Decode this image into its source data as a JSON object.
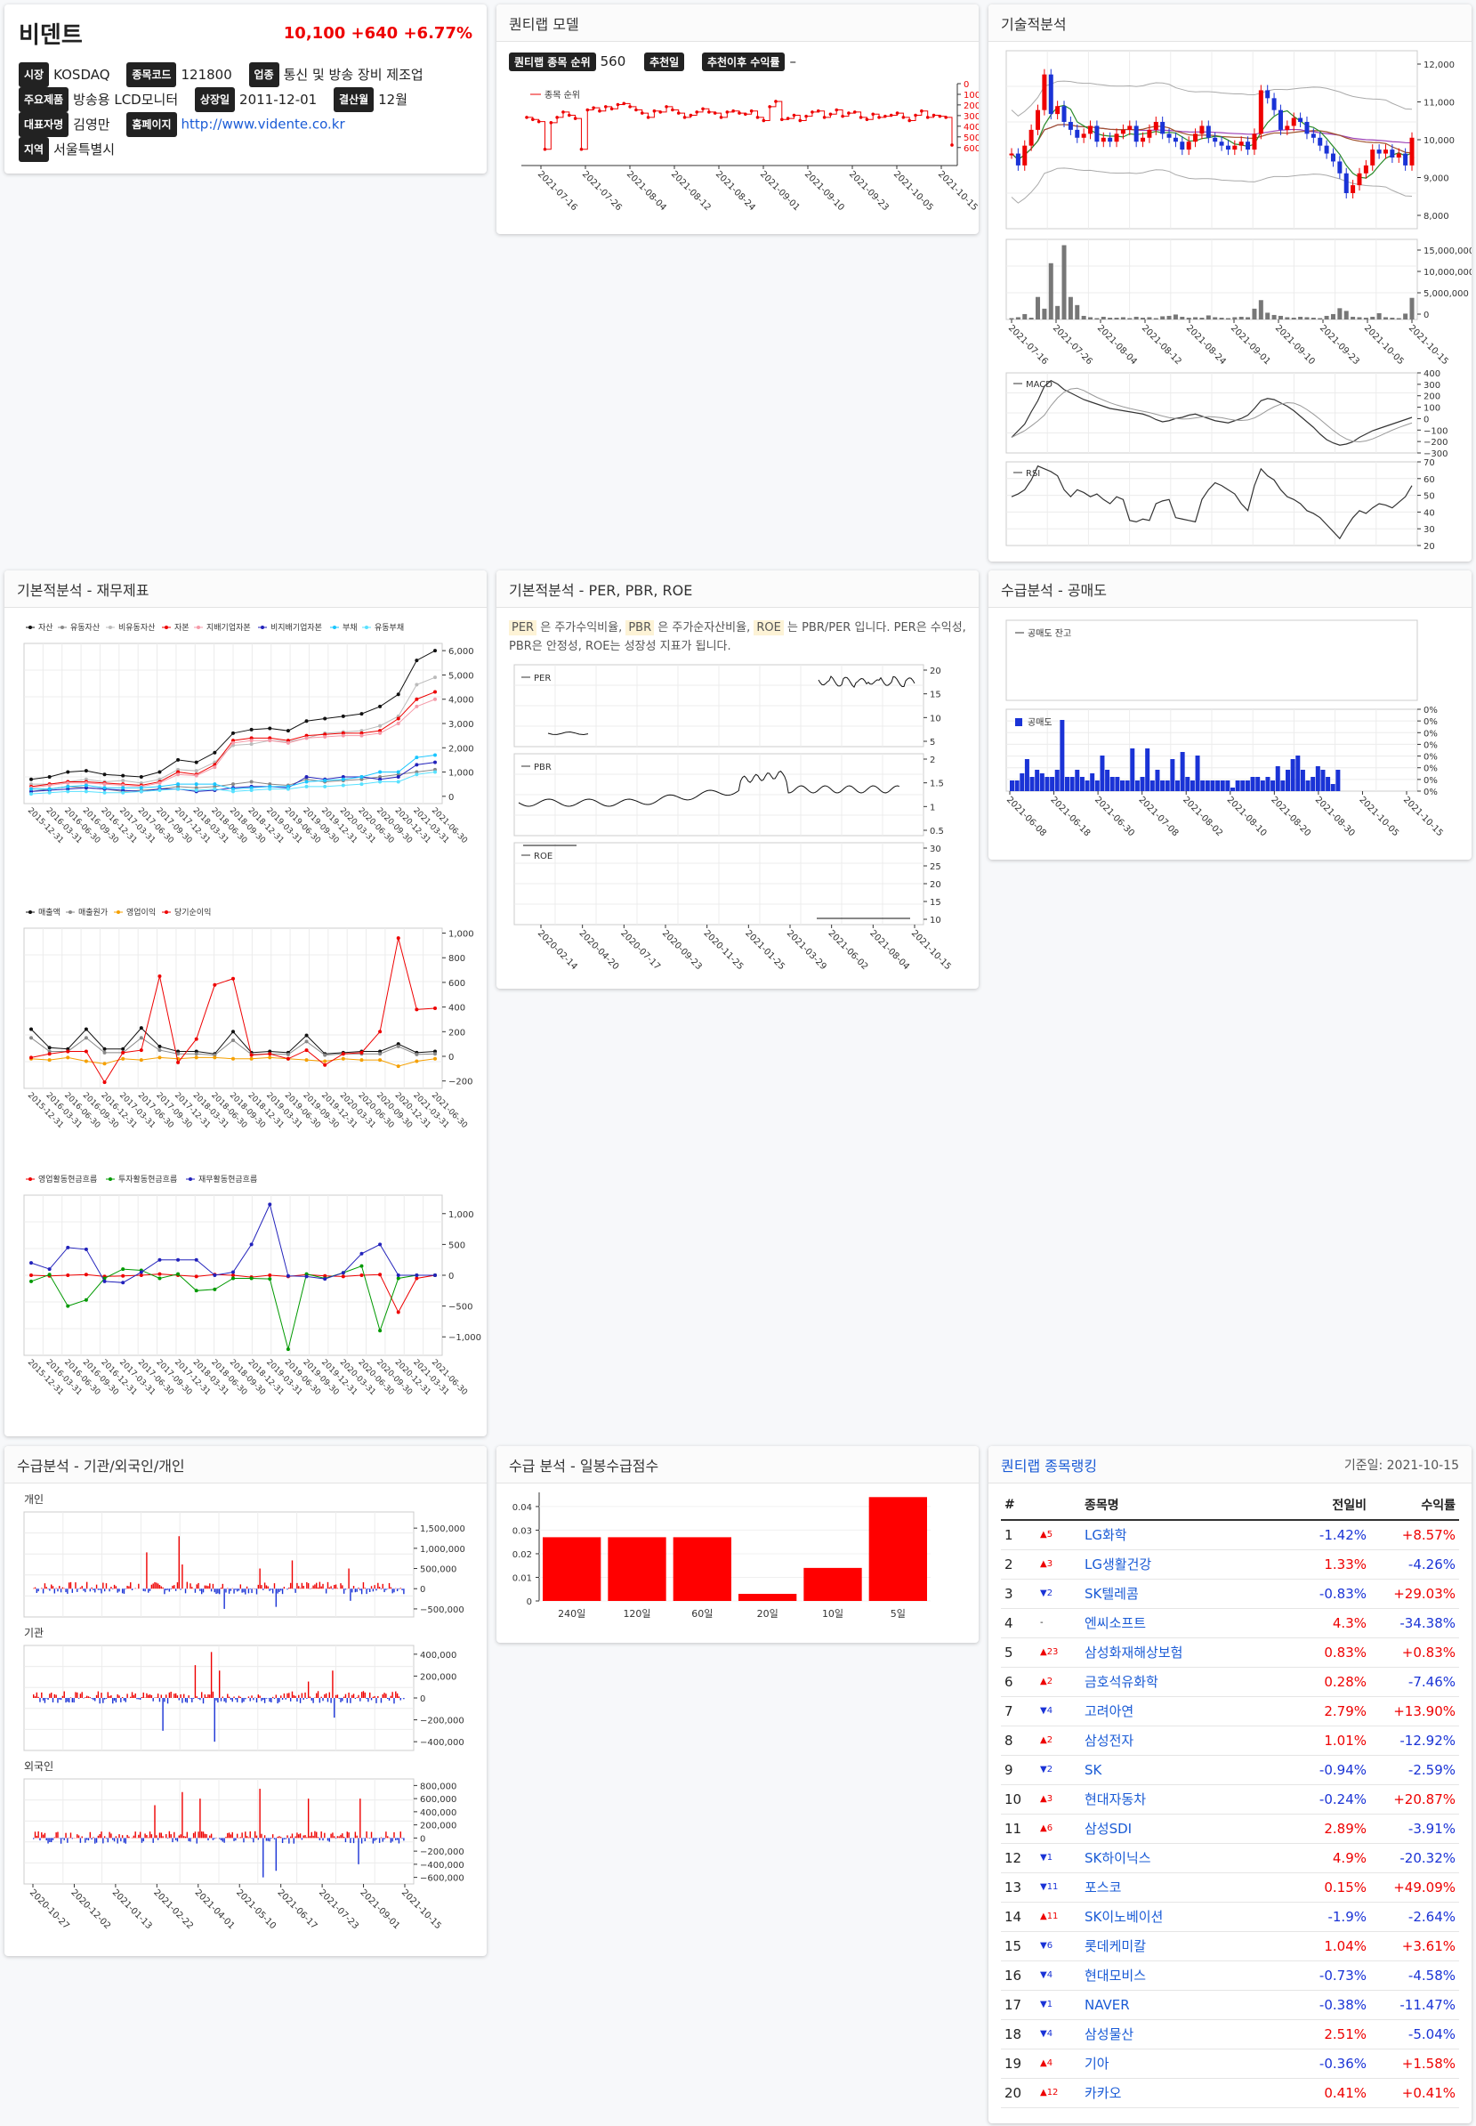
{
  "stock": {
    "name": "비덴트",
    "price": "10,100",
    "change": "+640",
    "change_pct": "+6.77%",
    "fields": [
      {
        "label": "시장",
        "value": "KOSDAQ"
      },
      {
        "label": "종목코드",
        "value": "121800"
      },
      {
        "label": "업종",
        "value": "통신 및 방송 장비 제조업"
      },
      {
        "label": "주요제품",
        "value": "방송용 LCD모니터"
      },
      {
        "label": "상장일",
        "value": "2011-12-01"
      },
      {
        "label": "결산월",
        "value": "12월"
      },
      {
        "label": "대표자명",
        "value": "김영만"
      },
      {
        "label": "홈페이지",
        "value": "http://www.vidente.co.kr"
      },
      {
        "label": "지역",
        "value": "서울특별시"
      }
    ]
  },
  "quantilab": {
    "title": "퀀티랩 모델",
    "rank_label": "퀀티랩 종목 순위",
    "rank_value": "560",
    "rec_label": "추천일",
    "profit_label": "추천이후 수익률",
    "profit_value": "–",
    "legend": "종목 순위",
    "y_ticks": [
      "0",
      "100",
      "200",
      "300",
      "400",
      "500",
      "600"
    ],
    "x_ticks": [
      "2021-07-16",
      "2021-07-26",
      "2021-08-04",
      "2021-08-12",
      "2021-08-24",
      "2021-09-01",
      "2021-09-10",
      "2021-09-23",
      "2021-10-05",
      "2021-10-15"
    ],
    "ranks": [
      300,
      320,
      340,
      600,
      350,
      300,
      250,
      280,
      310,
      600,
      230,
      210,
      240,
      200,
      220,
      180,
      170,
      200,
      230,
      260,
      300,
      240,
      250,
      200,
      230,
      260,
      300,
      280,
      250,
      220,
      250,
      260,
      300,
      250,
      240,
      260,
      270,
      240,
      300,
      330,
      200,
      150,
      320,
      310,
      280,
      330,
      290,
      250,
      240,
      300,
      270,
      230,
      290,
      260,
      250,
      300,
      320,
      270,
      300,
      290,
      280,
      260,
      300,
      330,
      280,
      240,
      300,
      280,
      290,
      300,
      560
    ]
  },
  "technical": {
    "title": "기술적분석",
    "price_ticks": [
      "12,000",
      "11,000",
      "10,000",
      "9,000",
      "8,000"
    ],
    "vol_ticks": [
      "15,000,000",
      "10,000,000",
      "5,000,000",
      "0"
    ],
    "macd_label": "MACD",
    "macd_ticks": [
      "400",
      "300",
      "200",
      "100",
      "0",
      "−100",
      "−200",
      "−300"
    ],
    "rsi_label": "RSI",
    "rsi_ticks": [
      "70",
      "60",
      "50",
      "40",
      "30",
      "20"
    ],
    "x_ticks": [
      "2021-07-16",
      "2021-07-26",
      "2021-08-04",
      "2021-08-12",
      "2021-08-24",
      "2021-09-01",
      "2021-09-10",
      "2021-09-23",
      "2021-10-05",
      "2021-10-15"
    ],
    "closes": [
      9700,
      9400,
      9900,
      10300,
      10800,
      11700,
      10700,
      10900,
      10500,
      10300,
      10100,
      10200,
      10400,
      10000,
      10100,
      10000,
      10200,
      10300,
      10400,
      10000,
      10100,
      10300,
      10500,
      10200,
      10100,
      10000,
      9800,
      10000,
      10200,
      10400,
      10100,
      10000,
      9900,
      9800,
      9900,
      10000,
      9800,
      10200,
      11300,
      11100,
      10800,
      10300,
      10400,
      10600,
      10500,
      10200,
      10100,
      9900,
      9700,
      9500,
      9200,
      8700,
      8900,
      9200,
      9400,
      9800,
      9700,
      9800,
      9600,
      9700,
      9400,
      10100
    ],
    "volumes": [
      0.3,
      0.5,
      1.2,
      0.4,
      5,
      2.4,
      12.5,
      3,
      16.5,
      5,
      3.2,
      0.8,
      0.5,
      0.3,
      0.6,
      0.4,
      0.4,
      0.5,
      0.3,
      0.6,
      0.4,
      0.5,
      0.3,
      0.7,
      0.8,
      1.1,
      0.6,
      0.4,
      0.5,
      0.4,
      0.9,
      0.5,
      0.4,
      0.3,
      0.5,
      0.6,
      0.5,
      2.4,
      4.3,
      1.5,
      1,
      0.8,
      0.5,
      0.4,
      0.6,
      0.5,
      0.4,
      0.3,
      0.8,
      1.2,
      2.5,
      1.9,
      0.6,
      0.5,
      0.4,
      0.6,
      1.4,
      0.5,
      0.4,
      0.3,
      1.3,
      4.8
    ],
    "macd": [
      -180,
      -120,
      -60,
      50,
      150,
      280,
      330,
      300,
      250,
      220,
      190,
      160,
      140,
      120,
      100,
      80,
      70,
      60,
      50,
      40,
      30,
      10,
      -20,
      -40,
      -30,
      -10,
      0,
      20,
      30,
      10,
      -10,
      -30,
      -40,
      -50,
      -30,
      -10,
      20,
      80,
      150,
      170,
      160,
      130,
      100,
      60,
      10,
      -40,
      -90,
      -150,
      -200,
      -230,
      -250,
      -240,
      -220,
      -180,
      -150,
      -120,
      -100,
      -80,
      -60,
      -40,
      -20,
      0
    ],
    "rsi": [
      50,
      52,
      55,
      62,
      72,
      70,
      68,
      65,
      55,
      50,
      55,
      53,
      50,
      52,
      48,
      45,
      50,
      48,
      33,
      32,
      34,
      33,
      45,
      47,
      48,
      35,
      34,
      33,
      32,
      48,
      55,
      60,
      58,
      55,
      52,
      45,
      40,
      58,
      70,
      65,
      62,
      55,
      50,
      48,
      45,
      40,
      38,
      35,
      30,
      25,
      20,
      28,
      35,
      40,
      38,
      42,
      45,
      44,
      42,
      46,
      50,
      58
    ]
  },
  "fin": {
    "title": "기본적분석 - 재무제표",
    "x": [
      "2015-12-31",
      "2016-03-31",
      "2016-06-30",
      "2016-09-30",
      "2016-12-31",
      "2017-03-31",
      "2017-06-30",
      "2017-09-30",
      "2017-12-31",
      "2018-03-31",
      "2018-06-30",
      "2018-09-30",
      "2018-12-31",
      "2019-03-31",
      "2019-06-30",
      "2019-09-30",
      "2019-12-31",
      "2020-03-31",
      "2020-06-30",
      "2020-09-30",
      "2020-12-31",
      "2021-03-31",
      "2021-06-30"
    ],
    "unit": "억원",
    "c1": {
      "legend": [
        "자산",
        "유동자산",
        "비유동자산",
        "자본",
        "지배기업자본",
        "비지배기업자본",
        "부채",
        "유동부채"
      ],
      "colors": [
        "#111",
        "#888",
        "#bbb",
        "#e00",
        "#f59aa8",
        "#22b",
        "#19c6ff",
        "#58e1ff"
      ],
      "ticks": [
        "6,000",
        "5,000",
        "4,000",
        "3,000",
        "2,000",
        "1,000",
        "0"
      ],
      "ymin": -300,
      "ymax": 6300,
      "series": [
        [
          700,
          800,
          1000,
          1050,
          900,
          850,
          800,
          1000,
          1500,
          1400,
          1800,
          2600,
          2750,
          2800,
          2700,
          3100,
          3200,
          3300,
          3400,
          3700,
          4200,
          5600,
          6000
        ],
        [
          200,
          300,
          400,
          350,
          300,
          200,
          250,
          300,
          400,
          350,
          400,
          500,
          600,
          500,
          450,
          700,
          600,
          650,
          700,
          800,
          900,
          1000,
          1100
        ],
        [
          500,
          500,
          600,
          700,
          600,
          650,
          550,
          700,
          1100,
          1050,
          1400,
          2100,
          2150,
          2300,
          2250,
          2400,
          2600,
          2650,
          2700,
          2900,
          3300,
          4600,
          4900
        ],
        [
          400,
          500,
          600,
          600,
          550,
          500,
          450,
          600,
          1000,
          900,
          1300,
          2300,
          2400,
          2400,
          2300,
          2500,
          2550,
          2600,
          2600,
          2700,
          3200,
          4000,
          4300
        ],
        [
          350,
          450,
          550,
          550,
          500,
          450,
          400,
          550,
          900,
          850,
          1200,
          2200,
          2300,
          2300,
          2200,
          2400,
          2450,
          2500,
          2500,
          2600,
          3000,
          3700,
          4000
        ],
        [
          200,
          250,
          300,
          350,
          300,
          250,
          200,
          300,
          300,
          200,
          250,
          350,
          400,
          400,
          350,
          800,
          700,
          800,
          800,
          700,
          800,
          1300,
          1400
        ],
        [
          300,
          300,
          400,
          450,
          350,
          350,
          350,
          400,
          500,
          500,
          500,
          300,
          350,
          400,
          400,
          600,
          650,
          700,
          800,
          1000,
          1000,
          1600,
          1700
        ],
        [
          100,
          150,
          200,
          200,
          150,
          150,
          200,
          250,
          300,
          250,
          300,
          200,
          250,
          300,
          300,
          400,
          400,
          450,
          500,
          600,
          600,
          900,
          1000
        ]
      ]
    },
    "c2": {
      "legend": [
        "매출액",
        "매출원가",
        "영업이익",
        "당기순이익"
      ],
      "colors": [
        "#111",
        "#888",
        "#f5a000",
        "#e00"
      ],
      "ticks": [
        "1,000",
        "800",
        "600",
        "400",
        "200",
        "0",
        "−200"
      ],
      "ymin": -260,
      "ymax": 1040,
      "series": [
        [
          220,
          70,
          60,
          220,
          60,
          60,
          230,
          80,
          40,
          40,
          20,
          200,
          30,
          40,
          30,
          170,
          20,
          30,
          40,
          40,
          100,
          30,
          40
        ],
        [
          150,
          40,
          40,
          150,
          30,
          30,
          150,
          50,
          20,
          20,
          10,
          130,
          15,
          20,
          15,
          120,
          10,
          20,
          20,
          20,
          80,
          15,
          20
        ],
        [
          -20,
          -30,
          -10,
          -40,
          -60,
          -20,
          -30,
          -10,
          -20,
          -10,
          -10,
          -20,
          -20,
          -10,
          -20,
          -30,
          -40,
          -20,
          -30,
          -30,
          -80,
          -40,
          -20
        ],
        [
          -10,
          20,
          40,
          40,
          -210,
          30,
          50,
          650,
          -50,
          140,
          580,
          630,
          10,
          20,
          -20,
          50,
          -70,
          20,
          30,
          200,
          960,
          380,
          390
        ]
      ]
    },
    "c3": {
      "legend": [
        "영업활동현금흐름",
        "투자활동현금흐름",
        "재무활동현금흐름"
      ],
      "colors": [
        "#e00",
        "#090",
        "#22b"
      ],
      "ticks": [
        "1,000",
        "500",
        "0",
        "−500",
        "−1,000"
      ],
      "ymin": -1300,
      "ymax": 1300,
      "series": [
        [
          0,
          -10,
          0,
          10,
          -20,
          -10,
          0,
          20,
          0,
          -20,
          10,
          0,
          -30,
          0,
          -20,
          10,
          -10,
          -20,
          0,
          10,
          -600,
          -50,
          0
        ],
        [
          -100,
          10,
          -500,
          -400,
          -50,
          100,
          80,
          -50,
          20,
          -250,
          -230,
          -50,
          -50,
          -60,
          -1200,
          20,
          -50,
          40,
          150,
          -900,
          -50,
          0,
          0
        ],
        [
          200,
          100,
          450,
          420,
          -100,
          -120,
          50,
          250,
          250,
          250,
          0,
          50,
          500,
          1150,
          -10,
          -20,
          -60,
          40,
          350,
          500,
          0,
          0,
          0
        ]
      ]
    }
  },
  "per": {
    "title": "기본적분석 - PER, PBR, ROE",
    "desc": [
      {
        "t": "PER",
        "h": true
      },
      {
        "t": " 은 주가수익비율, ",
        "h": false
      },
      {
        "t": "PBR",
        "h": true
      },
      {
        "t": " 은 주가순자산비율, ",
        "h": false
      },
      {
        "t": "ROE",
        "h": true
      },
      {
        "t": " 는 PBR/PER 입니다. PER은 수익성, PBR은 안정성, ROE는 성장성 지표가 됩니다.",
        "h": false
      }
    ],
    "per_label": "PER",
    "pbr_label": "PBR",
    "roe_label": "ROE",
    "per_ticks": [
      "20",
      "15",
      "10",
      "5"
    ],
    "pbr_ticks": [
      "2",
      "1.5",
      "1",
      "0.5"
    ],
    "roe_ticks": [
      "30",
      "25",
      "20",
      "15",
      "10"
    ],
    "x_ticks": [
      "2020-02-14",
      "2020-04-20",
      "2020-07-17",
      "2020-09-23",
      "2020-11-25",
      "2021-01-25",
      "2021-03-29",
      "2021-06-02",
      "2021-08-04",
      "2021-10-15"
    ]
  },
  "short": {
    "title": "수급분석 - 공매도",
    "balance_legend": "공매도 잔고",
    "sell_legend": "공매도",
    "ticks": [
      "0%",
      "0%",
      "0%",
      "0%",
      "0%",
      "0%",
      "0%",
      "0%"
    ],
    "x_ticks": [
      "2021-06-08",
      "2021-06-18",
      "2021-06-30",
      "2021-07-08",
      "2021-08-02",
      "2021-08-10",
      "2021-08-20",
      "2021-08-30",
      "2021-10-05",
      "2021-10-15"
    ],
    "bars": [
      0.15,
      0.15,
      0.25,
      0.45,
      0.2,
      0.3,
      0.25,
      0.2,
      0.2,
      0.3,
      1,
      0.2,
      0.2,
      0.3,
      0.2,
      0.15,
      0.25,
      0.15,
      0.5,
      0.3,
      0.2,
      0.2,
      0.15,
      0.15,
      0.6,
      0.15,
      0.2,
      0.6,
      0.15,
      0.3,
      0.15,
      0.15,
      0.45,
      0.15,
      0.55,
      0.2,
      0.15,
      0.5,
      0.15,
      0.15,
      0.15,
      0.15,
      0.15,
      0.15,
      0.05,
      0.15,
      0.15,
      0.15,
      0.2,
      0.2,
      0.15,
      0.2,
      0.15,
      0.35,
      0.15,
      0.3,
      0.45,
      0.5,
      0.3,
      0.15,
      0.2,
      0.35,
      0.3,
      0.2,
      0.1,
      0.3
    ]
  },
  "investor": {
    "title": "수급분석 - 기관/외국인/개인",
    "p1": {
      "label": "개인",
      "ticks": [
        "1,500,000",
        "1,000,000",
        "500,000",
        "0",
        "−500,000"
      ],
      "ymin": -700000,
      "ymax": 1900000
    },
    "p2": {
      "label": "기관",
      "ticks": [
        "400,000",
        "200,000",
        "0",
        "−200,000",
        "−400,000"
      ],
      "ymin": -480000,
      "ymax": 480000
    },
    "p3": {
      "label": "외국인",
      "ticks": [
        "800,000",
        "600,000",
        "400,000",
        "200,000",
        "0",
        "−200,000",
        "−400,000",
        "−600,000"
      ],
      "ymin": -700000,
      "ymax": 900000
    },
    "x_ticks": [
      "2020-10-27",
      "2020-12-02",
      "2021-01-13",
      "2021-02-22",
      "2021-04-01",
      "2021-05-10",
      "2021-06-17",
      "2021-07-23",
      "2021-09-01",
      "2021-10-15"
    ]
  },
  "daily": {
    "title": "수급 분석 - 일봉수급점수",
    "ticks": [
      "0.04",
      "0.03",
      "0.02",
      "0.01",
      "0"
    ],
    "categories": [
      "240일",
      "120일",
      "60일",
      "20일",
      "10일",
      "5일"
    ],
    "values": [
      0.027,
      0.027,
      0.027,
      0.003,
      0.014,
      0.044
    ],
    "ymax": 0.046
  },
  "ranking": {
    "title": "퀀티랩 종목랭킹",
    "base_date": "기준일: 2021-10-15",
    "headers": [
      "#",
      "",
      "종목명",
      "전일비",
      "수익률"
    ],
    "rows": [
      {
        "no": "1",
        "mv": "▲5",
        "dir": "up",
        "name": "LG화학",
        "chg": "-1.42%",
        "ret": "+8.57%"
      },
      {
        "no": "2",
        "mv": "▲3",
        "dir": "up",
        "name": "LG생활건강",
        "chg": "1.33%",
        "ret": "-4.26%"
      },
      {
        "no": "3",
        "mv": "▼2",
        "dir": "dn",
        "name": "SK텔레콤",
        "chg": "-0.83%",
        "ret": "+29.03%"
      },
      {
        "no": "4",
        "mv": "-",
        "dir": "nc",
        "name": "엔씨소프트",
        "chg": "4.3%",
        "ret": "-34.38%"
      },
      {
        "no": "5",
        "mv": "▲23",
        "dir": "up",
        "name": "삼성화재해상보험",
        "chg": "0.83%",
        "ret": "+0.83%"
      },
      {
        "no": "6",
        "mv": "▲2",
        "dir": "up",
        "name": "금호석유화학",
        "chg": "0.28%",
        "ret": "-7.46%"
      },
      {
        "no": "7",
        "mv": "▼4",
        "dir": "dn",
        "name": "고려아연",
        "chg": "2.79%",
        "ret": "+13.90%"
      },
      {
        "no": "8",
        "mv": "▲2",
        "dir": "up",
        "name": "삼성전자",
        "chg": "1.01%",
        "ret": "-12.92%"
      },
      {
        "no": "9",
        "mv": "▼2",
        "dir": "dn",
        "name": "SK",
        "chg": "-0.94%",
        "ret": "-2.59%"
      },
      {
        "no": "10",
        "mv": "▲3",
        "dir": "up",
        "name": "현대자동차",
        "chg": "-0.24%",
        "ret": "+20.87%"
      },
      {
        "no": "11",
        "mv": "▲6",
        "dir": "up",
        "name": "삼성SDI",
        "chg": "2.89%",
        "ret": "-3.91%"
      },
      {
        "no": "12",
        "mv": "▼1",
        "dir": "dn",
        "name": "SK하이닉스",
        "chg": "4.9%",
        "ret": "-20.32%"
      },
      {
        "no": "13",
        "mv": "▼11",
        "dir": "dn",
        "name": "포스코",
        "chg": "0.15%",
        "ret": "+49.09%"
      },
      {
        "no": "14",
        "mv": "▲11",
        "dir": "up",
        "name": "SK이노베이션",
        "chg": "-1.9%",
        "ret": "-2.64%"
      },
      {
        "no": "15",
        "mv": "▼6",
        "dir": "dn",
        "name": "롯데케미칼",
        "chg": "1.04%",
        "ret": "+3.61%"
      },
      {
        "no": "16",
        "mv": "▼4",
        "dir": "dn",
        "name": "현대모비스",
        "chg": "-0.73%",
        "ret": "-4.58%"
      },
      {
        "no": "17",
        "mv": "▼1",
        "dir": "dn",
        "name": "NAVER",
        "chg": "-0.38%",
        "ret": "-11.47%"
      },
      {
        "no": "18",
        "mv": "▼4",
        "dir": "dn",
        "name": "삼성물산",
        "chg": "2.51%",
        "ret": "-5.04%"
      },
      {
        "no": "19",
        "mv": "▲4",
        "dir": "up",
        "name": "기아",
        "chg": "-0.36%",
        "ret": "+1.58%"
      },
      {
        "no": "20",
        "mv": "▲12",
        "dir": "up",
        "name": "카카오",
        "chg": "0.41%",
        "ret": "+0.41%"
      }
    ]
  },
  "colors": {
    "up": "#ee0000",
    "down": "#1a33d6",
    "link": "#1a5bd6"
  }
}
